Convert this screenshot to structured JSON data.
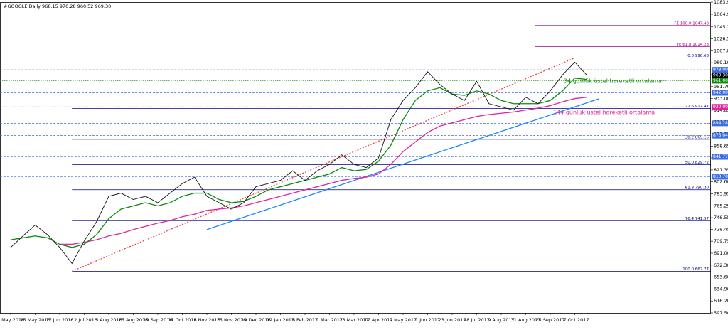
{
  "chart_data": {
    "type": "line",
    "title": "#GOOGLE,Daily  968.15 970.28 960.52 969.30",
    "categories": [
      "3 May 2016",
      null,
      "25 May 2016",
      null,
      "17 Jun 2016",
      null,
      "12 Jul 2016",
      null,
      "3 Aug 2016",
      null,
      "25 Aug 2016",
      null,
      "19 Sep 2016",
      null,
      "11 Oct 2016",
      null,
      "2 Nov 2016",
      null,
      "25 Nov 2016",
      null,
      "19 Dec 2016",
      null,
      "12 Jan 2017",
      null,
      "6 Feb 2017",
      null,
      "1 Mar 2017",
      null,
      "23 Mar 2017",
      null,
      "17 Apr 2017",
      null,
      "9 May 2017",
      null,
      "1 Jun 2017",
      null,
      "23 Jun 2017",
      null,
      "18 Jul 2017",
      null,
      "9 Aug 2017",
      null,
      "31 Aug 2017",
      null,
      "25 Sep 2017",
      null,
      "17 Oct 2017",
      null,
      null,
      null,
      null,
      null,
      null,
      null,
      null,
      null,
      null,
      null
    ],
    "series": [
      {
        "color": "#1e88ff",
        "values": [
          null,
          null,
          null,
          null,
          null,
          null,
          null,
          null,
          null,
          null,
          null,
          null,
          null,
          null,
          null,
          null,
          728,
          734.4,
          740.8,
          747.2,
          753.6,
          760,
          766.4,
          772.8,
          779.2,
          785.6,
          792,
          798.4,
          804.8,
          811.2,
          817.6,
          824,
          830.4,
          836.8,
          843.2,
          849.6,
          856,
          862.4,
          868.8,
          875.2,
          881.6,
          888,
          894.4,
          900.8,
          907.2,
          913.6,
          920,
          926.4,
          932.8,
          null,
          null,
          null,
          null,
          null,
          null,
          null,
          null,
          null
        ]
      },
      {
        "color": "#e84040",
        "values": [
          null,
          null,
          null,
          null,
          null,
          662.77,
          670.91,
          679.06,
          687.2,
          695.35,
          703.49,
          711.63,
          719.78,
          727.92,
          736.07,
          744.21,
          752.35,
          760.5,
          768.64,
          776.79,
          784.93,
          793.07,
          801.22,
          809.36,
          817.51,
          825.65,
          833.79,
          841.94,
          850.08,
          858.23,
          866.37,
          874.51,
          882.66,
          890.8,
          898.95,
          907.09,
          915.23,
          923.38,
          931.52,
          939.67,
          947.81,
          955.95,
          964.1,
          972.24,
          980.39,
          988.53,
          996.68,
          null,
          null,
          null,
          null,
          null,
          null,
          null,
          null,
          null,
          null,
          null
        ]
      },
      {
        "color": "#e0259a",
        "values": [
          null,
          null,
          null,
          null,
          705,
          705,
          708,
          712,
          718,
          722,
          728,
          733,
          738,
          742,
          748,
          752,
          758,
          760,
          762,
          765,
          770,
          775,
          780,
          785,
          790,
          795,
          800,
          805,
          808,
          810,
          815,
          830,
          850,
          865,
          880,
          890,
          895,
          900,
          905,
          908,
          910,
          912,
          915,
          918,
          922,
          928,
          933,
          935,
          null,
          null,
          null,
          null,
          null,
          null,
          null,
          null,
          null,
          null
        ]
      },
      {
        "color": "#0a8a0a",
        "values": [
          712,
          715,
          718,
          715,
          705,
          700,
          705,
          720,
          745,
          760,
          765,
          770,
          765,
          770,
          780,
          785,
          785,
          775,
          770,
          772,
          780,
          790,
          795,
          800,
          805,
          810,
          815,
          825,
          820,
          822,
          835,
          860,
          900,
          930,
          945,
          950,
          940,
          938,
          945,
          940,
          930,
          925,
          925,
          925,
          930,
          945,
          965,
          963,
          null,
          null,
          null,
          null,
          null,
          null,
          null,
          null,
          null,
          null
        ]
      },
      {
        "color": "#111111",
        "values": [
          700,
          718,
          735,
          720,
          700,
          675,
          710,
          740,
          780,
          785,
          775,
          780,
          770,
          785,
          800,
          810,
          780,
          770,
          760,
          770,
          795,
          800,
          805,
          820,
          805,
          820,
          830,
          845,
          830,
          825,
          840,
          900,
          930,
          950,
          975,
          955,
          940,
          930,
          960,
          925,
          920,
          915,
          935,
          925,
          945,
          970,
          990,
          969.3,
          null,
          null,
          null,
          null,
          null,
          null,
          null,
          null,
          null,
          null
        ]
      }
    ],
    "ylim": [
      597.5,
      1083.9
    ],
    "yticks": [
      {
        "value": 597.5,
        "label": "597.50"
      },
      {
        "value": 616.2,
        "label": "616.20"
      },
      {
        "value": 634.9,
        "label": "634.90"
      },
      {
        "value": 653.6,
        "label": "653.60"
      },
      {
        "value": 672.3,
        "label": "672.30"
      },
      {
        "value": 691,
        "label": "691.00"
      },
      {
        "value": 709.75,
        "label": "709.75"
      },
      {
        "value": 728.45,
        "label": "728.45"
      },
      {
        "value": 746.55,
        "label": "746.55"
      },
      {
        "value": 765.25,
        "label": "765.25"
      },
      {
        "value": 783.95,
        "label": "783.95"
      },
      {
        "value": 802.6,
        "label": "802.60"
      },
      {
        "value": 821.35,
        "label": "821.35"
      },
      {
        "value": 840.1,
        "label": "840.10"
      },
      {
        "value": 858.65,
        "label": "858.65"
      },
      {
        "value": 877.55,
        "label": "877.55"
      },
      {
        "value": 896.25,
        "label": "896.25"
      },
      {
        "value": 914.85,
        "label": "914.85"
      },
      {
        "value": 933,
        "label": "933.00"
      },
      {
        "value": 951.7,
        "label": "951.70"
      },
      {
        "value": 970.4,
        "label": "970.40"
      },
      {
        "value": 989.1,
        "label": "989.10"
      },
      {
        "value": 1007.8,
        "label": "1007.80"
      },
      {
        "value": 1026.5,
        "label": "1026.50"
      },
      {
        "value": 1045.2,
        "label": "1045.20"
      },
      {
        "value": 1064.95,
        "label": "1064.95"
      },
      {
        "value": 1083.9,
        "label": "1083.90"
      }
    ],
    "retracement_levels": [
      {
        "value": 996.68,
        "label": "0.0  996.68"
      },
      {
        "value": 917.47,
        "label": "22.6  917.47"
      },
      {
        "value": 869.15,
        "label": "38.2  869.15"
      },
      {
        "value": 829.72,
        "label": "50.0  829.72"
      },
      {
        "value": 790.3,
        "label": "61.8  790.30"
      },
      {
        "value": 741.57,
        "label": "76.4  741.57"
      },
      {
        "value": 662.77,
        "label": "100.0  662.77"
      }
    ],
    "expansion_levels": [
      {
        "value": 1014.23,
        "label": "FE  61.8  1014.23"
      },
      {
        "value": 1047.43,
        "label": "FE  100.0  1047.43"
      }
    ],
    "price_tags": [
      {
        "value": 978,
        "label": "978.00",
        "color": "#3c6ee0"
      },
      {
        "value": 969.3,
        "label": "969.30",
        "color": "#000000"
      },
      {
        "value": 961,
        "label": "961.00",
        "color": "#0a8a0a"
      },
      {
        "value": 942,
        "label": "942.00",
        "color": "#3c6ee0"
      },
      {
        "value": 920,
        "label": "920.00",
        "color": "#e0259a"
      },
      {
        "value": 894.28,
        "label": "894.28",
        "color": "#3c6ee0"
      },
      {
        "value": 875.04,
        "label": "875.04",
        "color": "#3c6ee0"
      },
      {
        "value": 841.77,
        "label": "841.77",
        "color": "#3c6ee0"
      },
      {
        "value": 810.7,
        "label": "810.70",
        "color": "#3c6ee0"
      }
    ],
    "annotations": [
      "34 günlük üstel hareketli ortalama",
      "144 günlük üstel hareketli ortalama"
    ]
  }
}
